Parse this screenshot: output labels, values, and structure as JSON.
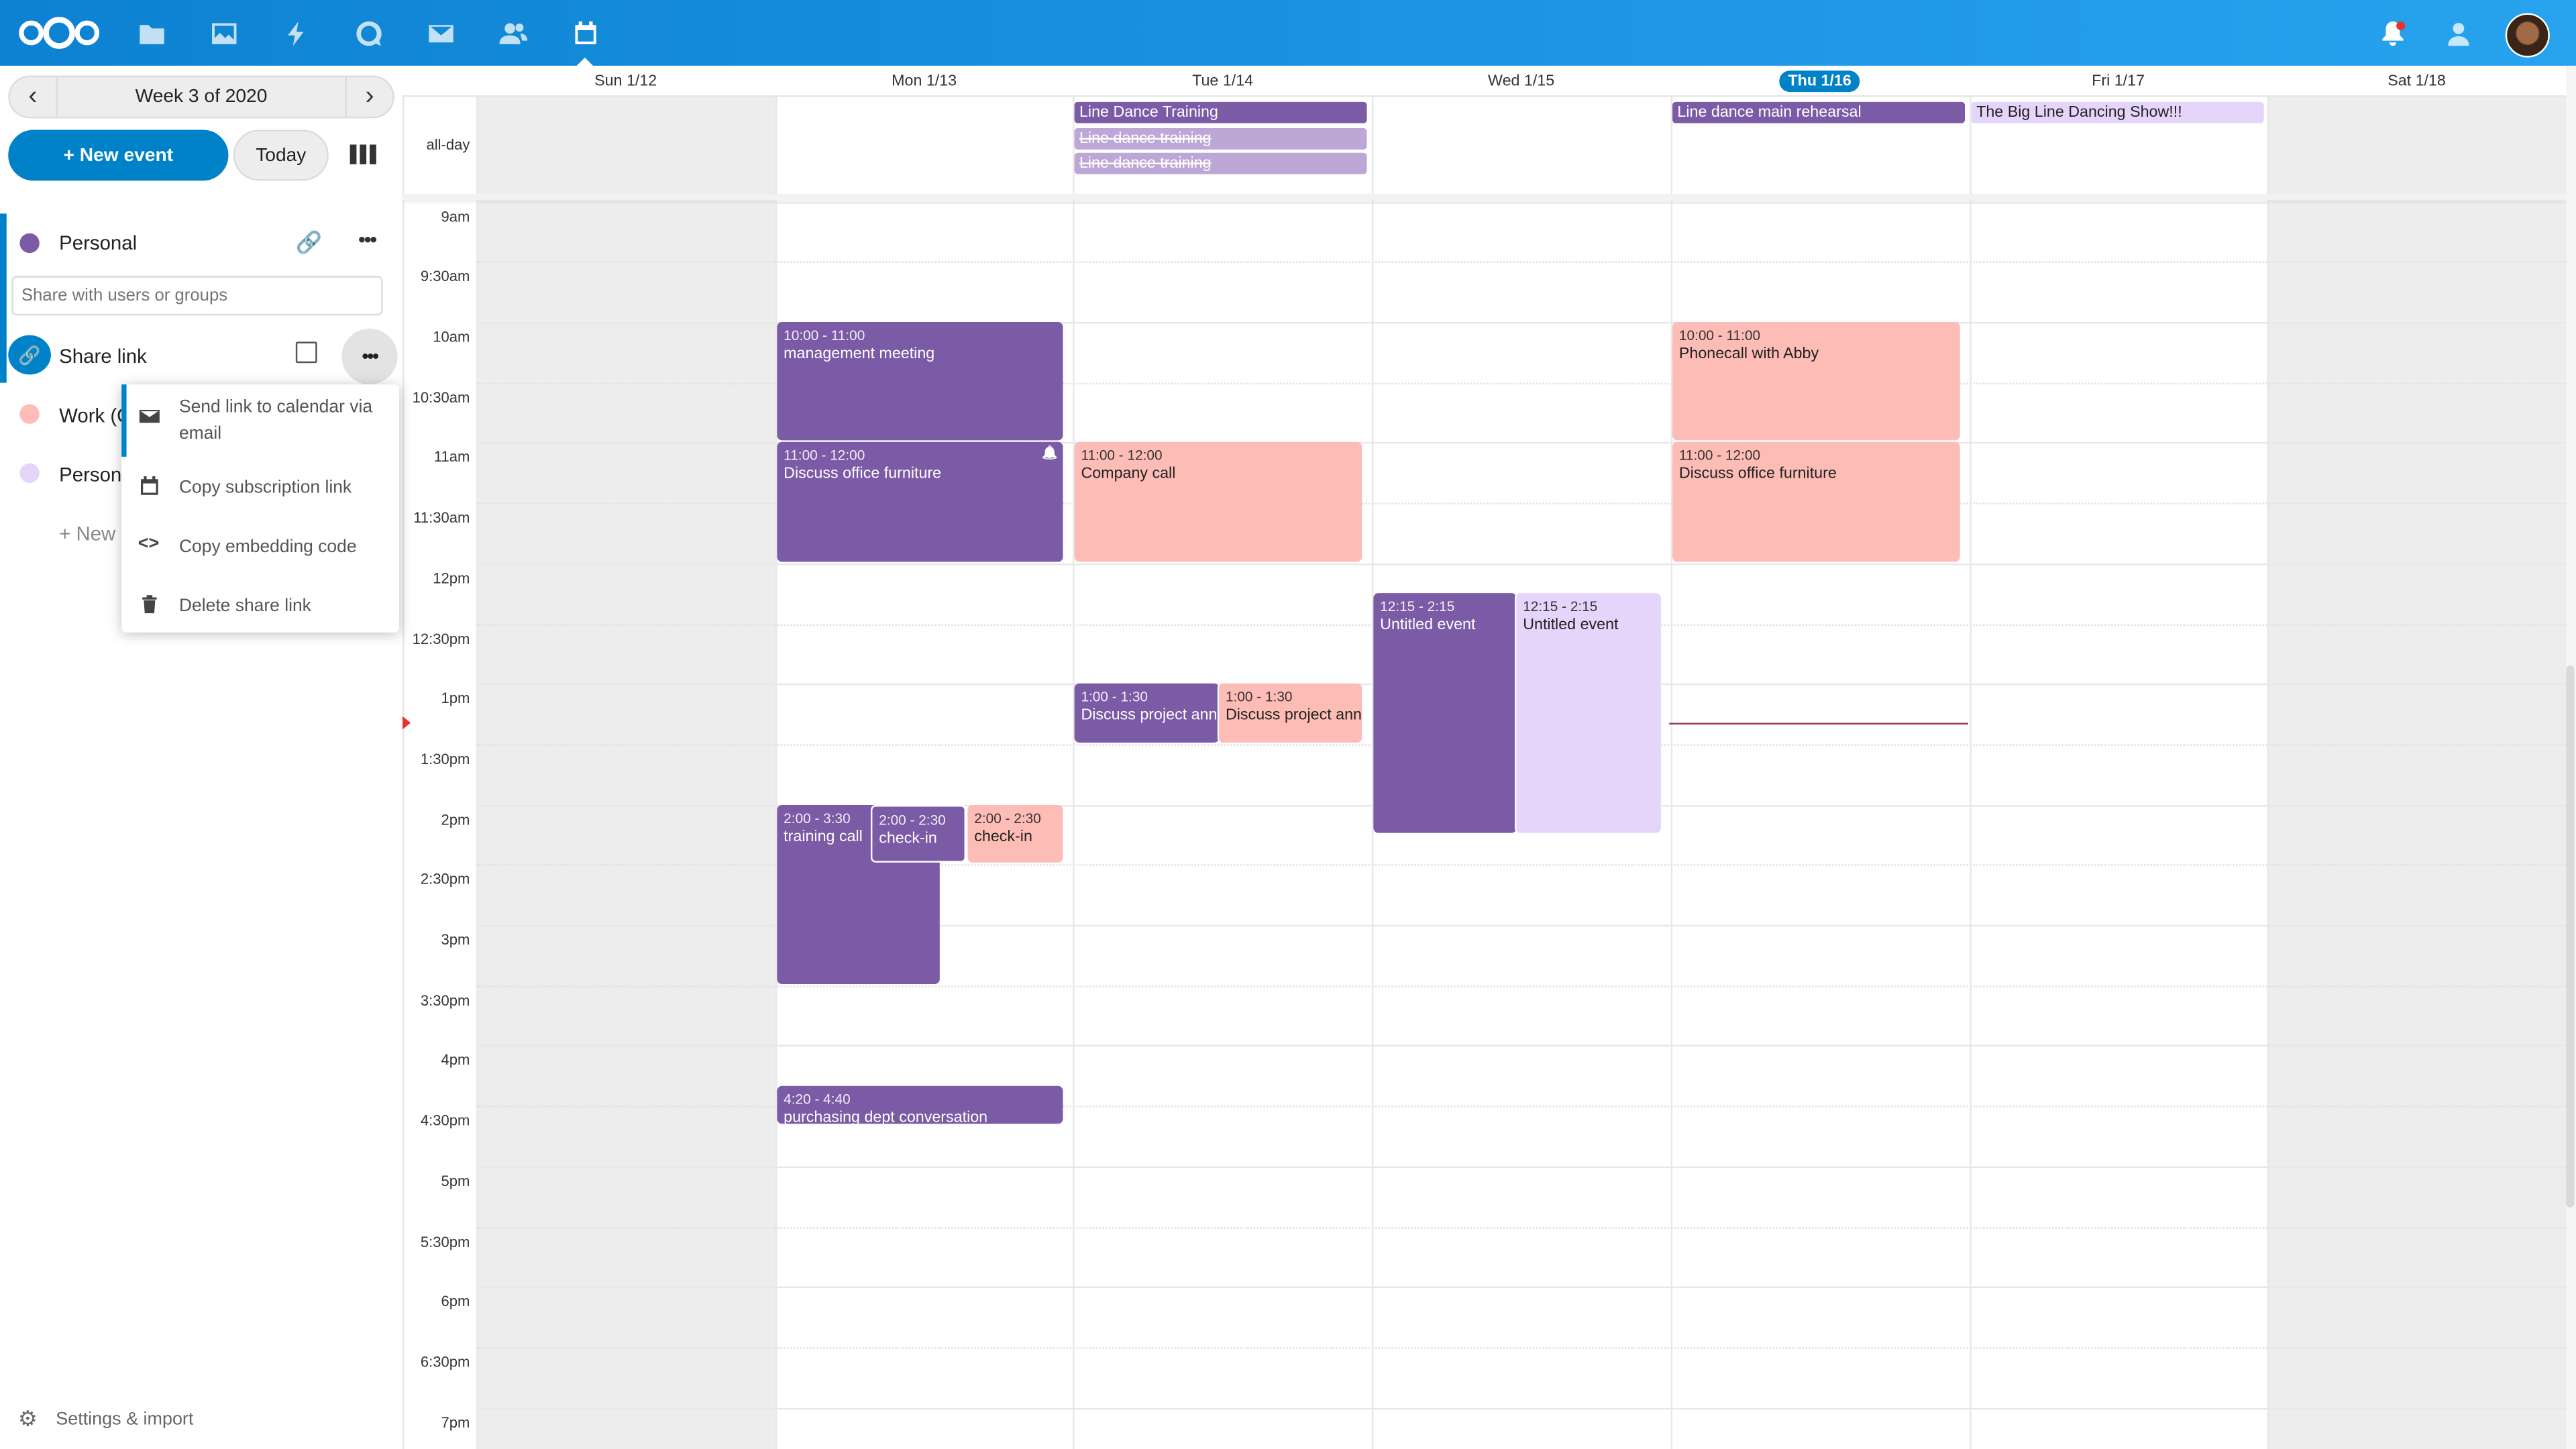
{
  "colors": {
    "header": "#0d82d2",
    "primary": "#0082c9",
    "personal": "#7b5aa6",
    "work": "#fdbdb6",
    "personal2": "#e6d5fb",
    "now": "#e9322d"
  },
  "header": {
    "apps": [
      "files-icon",
      "photos-icon",
      "activity-icon",
      "talk-icon",
      "mail-icon",
      "contacts-icon",
      "calendar-icon"
    ],
    "right": [
      "notifications-icon",
      "contacts-menu-icon",
      "avatar"
    ]
  },
  "sidebar": {
    "week_label": "Week 3 of 2020",
    "new_event": "+ New event",
    "today": "Today",
    "calendars": [
      {
        "name": "Personal",
        "color": "#7b5aa6"
      },
      {
        "name": "Work (C",
        "color": "#fdbdb6"
      },
      {
        "name": "Persona",
        "color": "#e6d5fb"
      }
    ],
    "share_placeholder": "Share with users or groups",
    "share_link": "Share link",
    "new_calendar": "+ New c",
    "settings": "Settings & import",
    "menu": [
      "Send link to calendar via email",
      "Copy subscription link",
      "Copy embedding code",
      "Delete share link"
    ]
  },
  "days": [
    "Sun 1/12",
    "Mon 1/13",
    "Tue 1/14",
    "Wed 1/15",
    "Thu 1/16",
    "Fri 1/17",
    "Sat 1/18"
  ],
  "today_index": 4,
  "allday_label": "all-day",
  "times": [
    "9am",
    "9:30am",
    "10am",
    "10:30am",
    "11am",
    "11:30am",
    "12pm",
    "12:30pm",
    "1pm",
    "1:30pm",
    "2pm",
    "2:30pm",
    "3pm",
    "3:30pm",
    "4pm",
    "4:30pm",
    "5pm",
    "5:30pm",
    "6pm",
    "6:30pm",
    "7pm"
  ],
  "allday_events": [
    {
      "title": "Line Dance Training",
      "day": "Tue 1/14"
    },
    {
      "title": "Line dance training",
      "day": "Tue 1/14",
      "cancelled": true
    },
    {
      "title": "Line dance training",
      "day": "Tue 1/14",
      "cancelled": true
    },
    {
      "title": "Line dance main rehearsal",
      "day": "Thu 1/16"
    },
    {
      "title": "The Big Line Dancing Show!!!",
      "day": "Fri 1/17"
    }
  ],
  "events": [
    {
      "time": "10:00 - 11:00",
      "title": "management meeting",
      "day": "Mon 1/13"
    },
    {
      "time": "11:00 - 12:00",
      "title": "Discuss office furniture",
      "day": "Mon 1/13",
      "alarm": true
    },
    {
      "time": "2:00 - 3:30",
      "title": "training call",
      "day": "Mon 1/13"
    },
    {
      "time": "2:00 - 2:30",
      "title": "check-in",
      "day": "Mon 1/13"
    },
    {
      "time": "2:00 - 2:30",
      "title": "check-in",
      "day": "Mon 1/13"
    },
    {
      "time": "4:20 - 4:40",
      "title": "purchasing dept conversation",
      "day": "Mon 1/13"
    },
    {
      "time": "11:00 - 12:00",
      "title": "Company call",
      "day": "Tue 1/14"
    },
    {
      "time": "1:00 - 1:30",
      "title": "Discuss project announcement",
      "day": "Tue 1/14"
    },
    {
      "time": "1:00 - 1:30",
      "title": "Discuss project announcement",
      "day": "Tue 1/14"
    },
    {
      "time": "12:15 - 2:15",
      "title": "Untitled event",
      "day": "Wed 1/15"
    },
    {
      "time": "12:15 - 2:15",
      "title": "Untitled event",
      "day": "Wed 1/15"
    },
    {
      "time": "10:00 - 11:00",
      "title": "Phonecall with Abby",
      "day": "Thu 1/16"
    },
    {
      "time": "11:00 - 12:00",
      "title": "Discuss office furniture",
      "day": "Thu 1/16"
    }
  ]
}
